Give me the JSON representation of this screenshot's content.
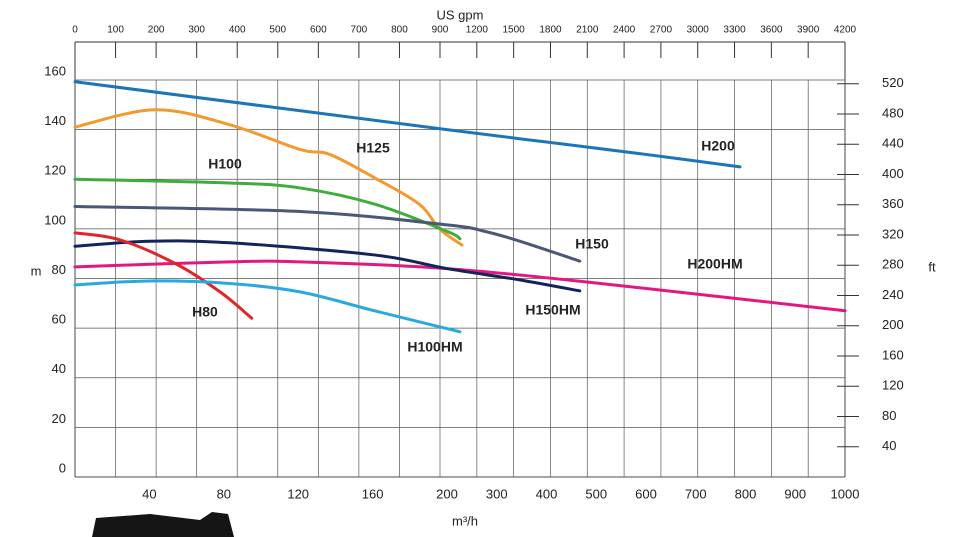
{
  "chart_data": {
    "type": "line",
    "x_label": "m³/h",
    "x2_label": "US gpm",
    "y_label": "m",
    "y2_label": "ft",
    "xlim": [
      0,
      1000
    ],
    "xbreak": 200,
    "xticks": [
      40,
      80,
      120,
      160,
      200,
      300,
      400,
      500,
      600,
      700,
      800,
      900,
      1000
    ],
    "x2lim": [
      0,
      4200
    ],
    "x2break": 900,
    "x2ticks": [
      0,
      100,
      200,
      300,
      400,
      500,
      600,
      700,
      800,
      900,
      1200,
      1500,
      1800,
      2100,
      2400,
      2700,
      3000,
      3300,
      3600,
      3900,
      4200
    ],
    "ylim": [
      0,
      160
    ],
    "yticks": [
      0,
      20,
      40,
      60,
      80,
      100,
      120,
      140,
      160
    ],
    "y2lim": [
      0,
      525
    ],
    "y2ticks": [
      40,
      80,
      120,
      160,
      200,
      240,
      280,
      320,
      360,
      400,
      440,
      480,
      520
    ],
    "grid": true,
    "series": [
      {
        "name": "H200",
        "color": "#1c75b8",
        "x": [
          0,
          200,
          400,
          600,
          789
        ],
        "values": [
          159.3,
          140,
          135,
          130,
          125
        ]
      },
      {
        "name": "H125",
        "color": "#f39a2e",
        "x": [
          0,
          43,
          83,
          121,
          137,
          161,
          185,
          196,
          230
        ],
        "values": [
          141,
          148,
          142,
          132,
          130,
          120.6,
          110,
          100,
          93.5
        ]
      },
      {
        "name": "H100",
        "color": "#3fac3c",
        "x": [
          0,
          83,
          121,
          161,
          200,
          226
        ],
        "values": [
          120,
          118.5,
          116.5,
          110,
          99,
          96
        ]
      },
      {
        "name": "H150",
        "color": "#4a5876",
        "x": [
          0,
          121,
          200,
          276,
          347,
          467
        ],
        "values": [
          109,
          107,
          101.6,
          99,
          95,
          87
        ]
      },
      {
        "name": "H200HM",
        "color": "#e2187f",
        "x": [
          0,
          83,
          121,
          200,
          508,
          1000
        ],
        "values": [
          84.7,
          86.7,
          86.7,
          84,
          78,
          67
        ]
      },
      {
        "name": "H150HM",
        "color": "#13245a",
        "x": [
          0,
          40,
          83,
          161,
          200,
          347,
          467
        ],
        "values": [
          93,
          95,
          94.4,
          89.5,
          84,
          79.4,
          75
        ]
      },
      {
        "name": "H80",
        "color": "#e1262b",
        "x": [
          0,
          24,
          54,
          78,
          95
        ],
        "values": [
          98.4,
          95.6,
          86,
          74.6,
          64
        ]
      },
      {
        "name": "H100HM",
        "color": "#2aa9e1",
        "x": [
          0,
          40,
          83,
          121,
          161,
          226
        ],
        "values": [
          77.4,
          79,
          78,
          74.6,
          67,
          58.5
        ]
      }
    ]
  }
}
